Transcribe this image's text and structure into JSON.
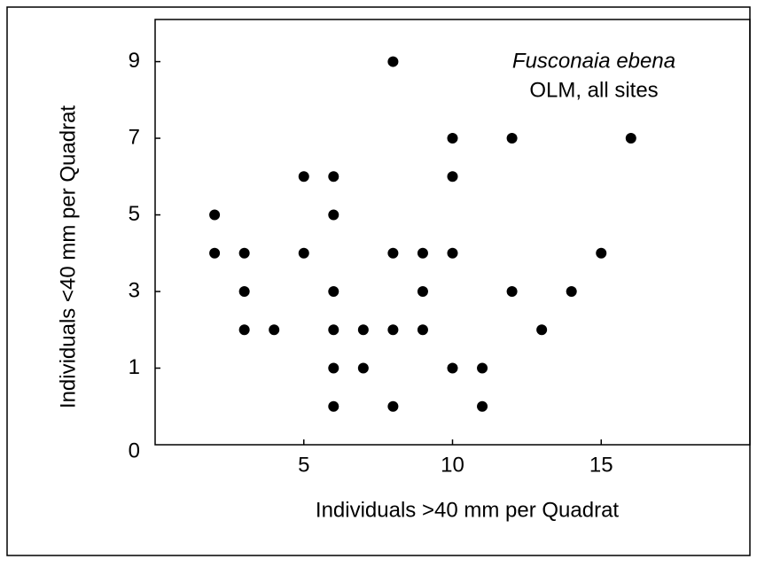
{
  "chart_data": {
    "type": "scatter",
    "annotation_species": "Fusconaia ebena",
    "annotation_scope": "OLM, all sites",
    "x_label": "Individuals >40 mm per Quadrat",
    "y_label": "Individuals <40 mm per Quadrat",
    "origin_label": "0",
    "x": [
      2,
      2,
      3,
      3,
      3,
      4,
      5,
      5,
      6,
      6,
      6,
      6,
      6,
      6,
      7,
      7,
      8,
      8,
      8,
      8,
      9,
      9,
      9,
      10,
      10,
      10,
      10,
      11,
      11,
      12,
      12,
      13,
      14,
      15,
      16
    ],
    "values": [
      5,
      4,
      4,
      3,
      2,
      2,
      6,
      4,
      6,
      5,
      3,
      2,
      1,
      0,
      2,
      1,
      9,
      4,
      2,
      0,
      4,
      3,
      2,
      7,
      6,
      4,
      1,
      1,
      0,
      7,
      3,
      2,
      3,
      4,
      7
    ],
    "color": "#000000",
    "xlim": [
      0,
      20
    ],
    "xticks": [
      5,
      10,
      15
    ],
    "ylim": [
      -1,
      10.1
    ],
    "yticks": [
      1,
      3,
      5,
      7,
      9
    ]
  }
}
